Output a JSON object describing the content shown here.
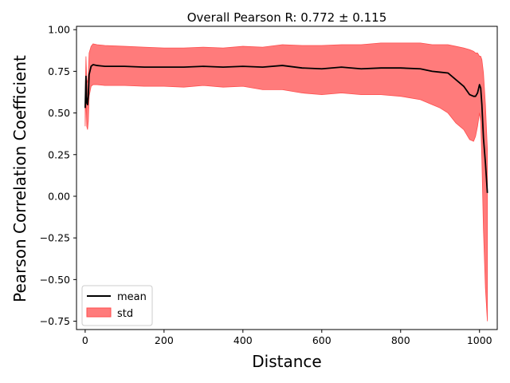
{
  "chart_data": {
    "type": "line",
    "title": "Overall Pearson R: 0.772 ± 0.115",
    "xlabel": "Distance",
    "ylabel": "Pearson Correlation Coefficient",
    "xlim": [
      -22,
      1045
    ],
    "ylim": [
      -0.8,
      1.02
    ],
    "xticks": [
      0,
      200,
      400,
      600,
      800,
      1000
    ],
    "yticks": [
      -0.75,
      -0.5,
      -0.25,
      0.0,
      0.25,
      0.5,
      0.75,
      1.0
    ],
    "xtick_labels": [
      "0",
      "200",
      "400",
      "600",
      "800",
      "1000"
    ],
    "ytick_labels": [
      "−0.75",
      "−0.50",
      "−0.25",
      "0.00",
      "0.25",
      "0.50",
      "0.75",
      "1.00"
    ],
    "grid": false,
    "legend": {
      "placement": "lower-left",
      "entries": [
        "mean",
        "std"
      ]
    },
    "colors": {
      "mean": "#000000",
      "std_fill": "#ff7b7b",
      "std_edge": "#ff4d4d"
    },
    "series": [
      {
        "name": "mean",
        "x": [
          0,
          2,
          4,
          6,
          8,
          10,
          15,
          20,
          30,
          50,
          100,
          150,
          200,
          250,
          300,
          350,
          400,
          450,
          500,
          550,
          600,
          650,
          700,
          750,
          800,
          850,
          880,
          900,
          920,
          940,
          960,
          975,
          985,
          990,
          995,
          1000,
          1003,
          1006,
          1010,
          1015,
          1020
        ],
        "y": [
          0.53,
          0.72,
          0.56,
          0.55,
          0.6,
          0.73,
          0.78,
          0.79,
          0.785,
          0.78,
          0.78,
          0.775,
          0.775,
          0.775,
          0.78,
          0.775,
          0.78,
          0.775,
          0.785,
          0.77,
          0.765,
          0.775,
          0.765,
          0.77,
          0.77,
          0.765,
          0.75,
          0.745,
          0.74,
          0.7,
          0.66,
          0.61,
          0.6,
          0.6,
          0.62,
          0.67,
          0.65,
          0.55,
          0.35,
          0.2,
          0.02
        ]
      },
      {
        "name": "std",
        "x": [
          0,
          2,
          4,
          6,
          8,
          10,
          15,
          20,
          30,
          50,
          100,
          150,
          200,
          250,
          300,
          350,
          400,
          450,
          500,
          550,
          600,
          650,
          700,
          750,
          800,
          850,
          880,
          900,
          920,
          940,
          960,
          975,
          985,
          990,
          995,
          1000,
          1003,
          1006,
          1010,
          1015,
          1020
        ],
        "upper": [
          0.6,
          0.84,
          0.7,
          0.68,
          0.74,
          0.86,
          0.9,
          0.915,
          0.91,
          0.905,
          0.9,
          0.895,
          0.89,
          0.89,
          0.895,
          0.89,
          0.9,
          0.895,
          0.91,
          0.905,
          0.905,
          0.91,
          0.91,
          0.92,
          0.92,
          0.92,
          0.91,
          0.91,
          0.91,
          0.9,
          0.89,
          0.88,
          0.87,
          0.86,
          0.86,
          0.84,
          0.84,
          0.82,
          0.74,
          0.55,
          0.28
        ],
        "lower": [
          0.42,
          0.6,
          0.42,
          0.4,
          0.45,
          0.6,
          0.66,
          0.67,
          0.67,
          0.665,
          0.665,
          0.66,
          0.66,
          0.655,
          0.665,
          0.655,
          0.66,
          0.64,
          0.64,
          0.62,
          0.61,
          0.62,
          0.61,
          0.61,
          0.6,
          0.58,
          0.55,
          0.53,
          0.5,
          0.44,
          0.4,
          0.34,
          0.33,
          0.36,
          0.42,
          0.5,
          0.45,
          0.22,
          -0.2,
          -0.55,
          -0.75
        ]
      }
    ]
  }
}
